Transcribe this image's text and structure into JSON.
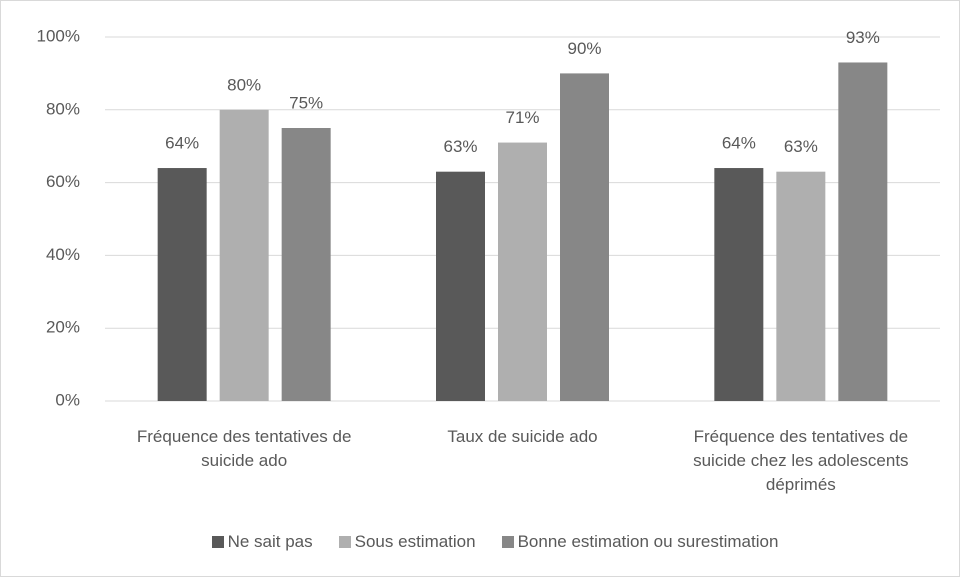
{
  "chart_data": {
    "type": "bar",
    "categories": [
      "Fréquence des tentatives de suicide ado",
      "Taux de suicide ado",
      "Fréquence des tentatives de suicide chez les adolescents déprimés"
    ],
    "series": [
      {
        "name": "Ne sait pas",
        "color": "#595959",
        "values": [
          64,
          63,
          64
        ],
        "value_labels": [
          "64%",
          "63%",
          "64%"
        ]
      },
      {
        "name": "Sous estimation",
        "color": "#afafaf",
        "values": [
          80,
          71,
          63
        ],
        "value_labels": [
          "80%",
          "71%",
          "63%"
        ]
      },
      {
        "name": "Bonne estimation ou surestimation",
        "color": "#878787",
        "values": [
          75,
          90,
          93
        ],
        "value_labels": [
          "75%",
          "90%",
          "93%"
        ]
      }
    ],
    "ylim": [
      0,
      100
    ],
    "yticks": [
      {
        "value": 0,
        "label": "0%"
      },
      {
        "value": 20,
        "label": "20%"
      },
      {
        "value": 40,
        "label": "40%"
      },
      {
        "value": 60,
        "label": "60%"
      },
      {
        "value": 80,
        "label": "80%"
      },
      {
        "value": 100,
        "label": "100%"
      }
    ],
    "grid": true,
    "legend": "bottom"
  }
}
